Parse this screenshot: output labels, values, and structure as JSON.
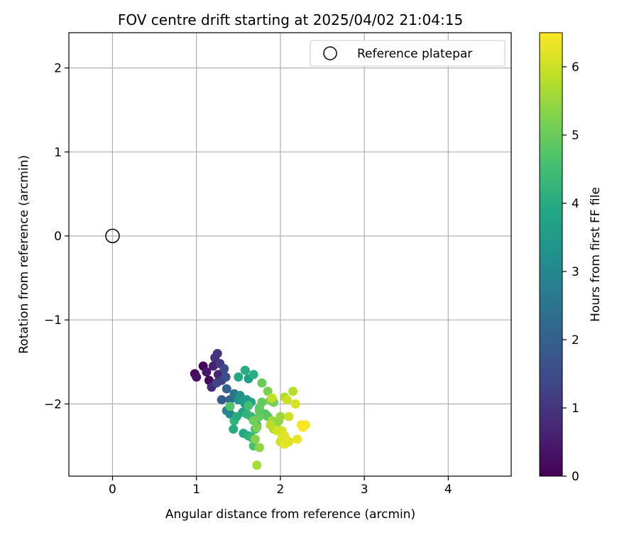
{
  "chart_data": {
    "type": "scatter",
    "title": "FOV centre drift starting at 2025/04/02 21:04:15",
    "xlabel": "Angular distance from reference (arcmin)",
    "ylabel": "Rotation from reference (arcmin)",
    "xlim": [
      -0.52,
      4.75
    ],
    "ylim": [
      -2.86,
      2.42
    ],
    "x_ticks": [
      0,
      1,
      2,
      3,
      4
    ],
    "y_ticks": [
      -2,
      -1,
      0,
      1,
      2
    ],
    "grid": true,
    "legend": {
      "placement": "top-right",
      "entries": [
        "Reference platepar"
      ]
    },
    "reference_point": {
      "x": 0,
      "y": 0
    },
    "colorbar": {
      "label": "Hours from first FF file",
      "min": 0,
      "max": 6.5,
      "ticks": [
        0,
        1,
        2,
        3,
        4,
        5,
        6
      ],
      "colormap": "viridis"
    },
    "points": [
      [
        0.98,
        -1.64,
        0.15
      ],
      [
        1.0,
        -1.68,
        0.3
      ],
      [
        1.08,
        -1.55,
        0.05
      ],
      [
        1.12,
        -1.62,
        0.4
      ],
      [
        1.15,
        -1.72,
        0.2
      ],
      [
        1.2,
        -1.55,
        0.6
      ],
      [
        1.18,
        -1.8,
        0.8
      ],
      [
        1.22,
        -1.45,
        0.9
      ],
      [
        1.25,
        -1.4,
        1.0
      ],
      [
        1.26,
        -1.65,
        0.7
      ],
      [
        1.28,
        -1.52,
        1.1
      ],
      [
        1.24,
        -1.75,
        1.3
      ],
      [
        1.3,
        -1.72,
        1.2
      ],
      [
        1.33,
        -1.58,
        1.4
      ],
      [
        1.35,
        -1.68,
        1.6
      ],
      [
        1.3,
        -1.95,
        1.8
      ],
      [
        1.36,
        -1.82,
        2.0
      ],
      [
        1.4,
        -1.95,
        2.2
      ],
      [
        1.45,
        -1.88,
        2.5
      ],
      [
        1.36,
        -2.08,
        2.8
      ],
      [
        1.4,
        -2.12,
        3.0
      ],
      [
        1.5,
        -1.95,
        3.2
      ],
      [
        1.52,
        -1.9,
        3.3
      ],
      [
        1.55,
        -1.96,
        3.4
      ],
      [
        1.58,
        -2.0,
        3.5
      ],
      [
        1.6,
        -1.95,
        3.5
      ],
      [
        1.62,
        -1.7,
        3.6
      ],
      [
        1.65,
        -1.98,
        3.7
      ],
      [
        1.55,
        -2.1,
        3.8
      ],
      [
        1.5,
        -1.68,
        3.9
      ],
      [
        1.58,
        -1.6,
        4.0
      ],
      [
        1.68,
        -1.65,
        4.1
      ],
      [
        1.45,
        -2.2,
        4.2
      ],
      [
        1.48,
        -2.15,
        4.0
      ],
      [
        1.6,
        -2.12,
        4.2
      ],
      [
        1.65,
        -2.15,
        4.3
      ],
      [
        1.7,
        -2.2,
        4.4
      ],
      [
        1.72,
        -2.25,
        4.5
      ],
      [
        1.56,
        -2.35,
        3.9
      ],
      [
        1.62,
        -2.38,
        4.1
      ],
      [
        1.66,
        -2.4,
        4.3
      ],
      [
        1.68,
        -2.5,
        4.6
      ],
      [
        1.44,
        -2.3,
        4.0
      ],
      [
        1.4,
        -2.03,
        4.7
      ],
      [
        1.7,
        -2.3,
        4.6
      ],
      [
        1.75,
        -2.05,
        4.8
      ],
      [
        1.78,
        -1.98,
        4.9
      ],
      [
        1.82,
        -2.12,
        4.7
      ],
      [
        1.85,
        -2.15,
        4.8
      ],
      [
        1.78,
        -1.75,
        5.0
      ],
      [
        1.85,
        -1.85,
        5.2
      ],
      [
        1.88,
        -1.96,
        5.3
      ],
      [
        1.92,
        -1.98,
        5.1
      ],
      [
        1.75,
        -2.15,
        5.0
      ],
      [
        1.68,
        -2.2,
        5.1
      ],
      [
        1.72,
        -2.28,
        5.2
      ],
      [
        1.7,
        -2.42,
        5.3
      ],
      [
        1.75,
        -2.52,
        5.4
      ],
      [
        1.72,
        -2.73,
        5.6
      ],
      [
        1.9,
        -2.2,
        5.5
      ],
      [
        1.95,
        -2.25,
        5.6
      ],
      [
        1.98,
        -2.2,
        5.4
      ],
      [
        2.0,
        -2.15,
        5.5
      ],
      [
        1.92,
        -2.3,
        5.7
      ],
      [
        1.88,
        -2.25,
        5.8
      ],
      [
        1.9,
        -1.93,
        5.9
      ],
      [
        2.05,
        -1.92,
        5.7
      ],
      [
        2.08,
        -1.95,
        6.0
      ],
      [
        2.15,
        -1.85,
        5.8
      ],
      [
        2.18,
        -2.0,
        6.1
      ],
      [
        2.1,
        -2.15,
        6.0
      ],
      [
        2.02,
        -2.32,
        6.1
      ],
      [
        2.05,
        -2.38,
        6.2
      ],
      [
        2.0,
        -2.45,
        6.0
      ],
      [
        2.05,
        -2.48,
        6.3
      ],
      [
        2.1,
        -2.45,
        6.2
      ],
      [
        2.2,
        -2.42,
        6.3
      ],
      [
        2.25,
        -2.25,
        6.4
      ],
      [
        2.3,
        -2.25,
        6.4
      ],
      [
        2.27,
        -2.28,
        6.5
      ],
      [
        1.96,
        -2.32,
        6.1
      ],
      [
        2.02,
        -2.4,
        6.2
      ],
      [
        1.62,
        -2.02,
        4.5
      ],
      [
        1.75,
        -2.08,
        4.9
      ]
    ]
  }
}
